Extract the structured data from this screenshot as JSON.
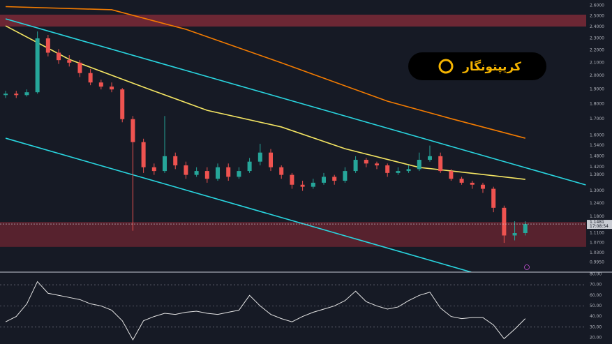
{
  "chart_data": [
    {
      "type": "candlestick",
      "log_scale": true,
      "xlim": [
        -0.53,
        54.74
      ],
      "ylim": [
        0.959,
        2.655
      ],
      "yticks": [
        {
          "value": 2.6,
          "label": "2.6000"
        },
        {
          "value": 2.5,
          "label": "2.5000"
        },
        {
          "value": 2.4,
          "label": "2.4000"
        },
        {
          "value": 2.3,
          "label": "2.3000"
        },
        {
          "value": 2.2,
          "label": "2.2000"
        },
        {
          "value": 2.1,
          "label": "2.1000"
        },
        {
          "value": 2.0,
          "label": "2.0000"
        },
        {
          "value": 1.9,
          "label": "1.9000"
        },
        {
          "value": 1.8,
          "label": "1.8000"
        },
        {
          "value": 1.7,
          "label": "1.7000"
        },
        {
          "value": 1.6,
          "label": "1.6000"
        },
        {
          "value": 1.54,
          "label": "1.5400"
        },
        {
          "value": 1.48,
          "label": "1.4800"
        },
        {
          "value": 1.42,
          "label": "1.4200"
        },
        {
          "value": 1.38,
          "label": "1.3800"
        },
        {
          "value": 1.3,
          "label": "1.3000"
        },
        {
          "value": 1.24,
          "label": "1.2400"
        },
        {
          "value": 1.18,
          "label": "1.1800"
        },
        {
          "value": 1.11,
          "label": "1.1100"
        },
        {
          "value": 1.07,
          "label": "1.0700"
        },
        {
          "value": 1.03,
          "label": "1.0300"
        },
        {
          "value": 0.995,
          "label": "0.9950"
        }
      ],
      "up_color": "#26a69a",
      "down_color": "#ef5350",
      "open": [
        1.86,
        1.87,
        1.86,
        1.88,
        2.3,
        2.18,
        2.12,
        2.1,
        2.02,
        1.95,
        1.92,
        1.9,
        1.7,
        1.56,
        1.42,
        1.4,
        1.48,
        1.43,
        1.38,
        1.4,
        1.36,
        1.42,
        1.37,
        1.4,
        1.45,
        1.5,
        1.42,
        1.38,
        1.33,
        1.32,
        1.34,
        1.37,
        1.35,
        1.4,
        1.46,
        1.44,
        1.43,
        1.39,
        1.4,
        1.41,
        1.46,
        1.48,
        1.4,
        1.36,
        1.34,
        1.33,
        1.31,
        1.22,
        1.1,
        1.11
      ],
      "high": [
        1.89,
        1.89,
        1.9,
        2.36,
        2.33,
        2.21,
        2.16,
        2.12,
        2.05,
        1.97,
        1.95,
        1.91,
        1.72,
        1.58,
        1.44,
        1.72,
        1.5,
        1.45,
        1.42,
        1.42,
        1.44,
        1.44,
        1.42,
        1.47,
        1.55,
        1.52,
        1.43,
        1.39,
        1.35,
        1.36,
        1.39,
        1.38,
        1.42,
        1.48,
        1.47,
        1.45,
        1.44,
        1.42,
        1.43,
        1.5,
        1.54,
        1.5,
        1.41,
        1.37,
        1.35,
        1.34,
        1.32,
        1.23,
        1.16,
        1.16
      ],
      "low": [
        1.84,
        1.84,
        1.85,
        1.87,
        2.15,
        2.09,
        2.07,
        1.99,
        1.93,
        1.9,
        1.88,
        1.68,
        1.12,
        1.39,
        1.38,
        1.39,
        1.41,
        1.36,
        1.37,
        1.34,
        1.35,
        1.35,
        1.36,
        1.39,
        1.43,
        1.4,
        1.36,
        1.31,
        1.3,
        1.31,
        1.33,
        1.33,
        1.34,
        1.39,
        1.42,
        1.41,
        1.37,
        1.38,
        1.39,
        1.4,
        1.45,
        1.39,
        1.35,
        1.33,
        1.31,
        1.29,
        1.2,
        1.07,
        1.08,
        1.1
      ],
      "close": [
        1.87,
        1.86,
        1.88,
        2.3,
        2.18,
        2.12,
        2.1,
        2.02,
        1.95,
        1.92,
        1.9,
        1.7,
        1.56,
        1.42,
        1.4,
        1.48,
        1.43,
        1.38,
        1.4,
        1.36,
        1.42,
        1.37,
        1.4,
        1.45,
        1.5,
        1.42,
        1.38,
        1.33,
        1.32,
        1.34,
        1.37,
        1.35,
        1.4,
        1.46,
        1.44,
        1.43,
        1.39,
        1.4,
        1.41,
        1.46,
        1.48,
        1.4,
        1.36,
        1.34,
        1.33,
        1.31,
        1.22,
        1.1,
        1.11,
        1.148
      ],
      "lines": [
        {
          "color": "#f57c00",
          "x": [
            0,
            10,
            17,
            26,
            36,
            42,
            49
          ],
          "values": [
            2.59,
            2.56,
            2.379,
            2.099,
            1.818,
            1.703,
            1.583
          ]
        },
        {
          "color": "#f5e663",
          "x": [
            0,
            6,
            13,
            19,
            26,
            32,
            39,
            45,
            49
          ],
          "values": [
            2.41,
            2.126,
            1.916,
            1.757,
            1.651,
            1.522,
            1.419,
            1.382,
            1.357
          ]
        },
        {
          "color": "#29d6e0",
          "x": [
            0,
            54.7
          ],
          "values": [
            2.474,
            1.329
          ]
        },
        {
          "color": "#29d6e0",
          "x": [
            0,
            43.9
          ],
          "values": [
            1.583,
            0.959
          ]
        }
      ],
      "zones": [
        {
          "from": 2.404,
          "to": 2.513,
          "color": "#8a2c3a"
        },
        {
          "from": 1.054,
          "to": 1.157,
          "color": "#6e2632"
        }
      ],
      "last_price": 1.1481,
      "countdown": "17:08:54",
      "watermark": "کریپتونگار"
    },
    {
      "type": "line",
      "xlim": [
        -0.53,
        54.74
      ],
      "ylim": [
        14,
        81.3
      ],
      "color": "#e6e6e6",
      "yticks": [
        {
          "value": 80,
          "label": "80.00"
        },
        {
          "value": 70,
          "label": "70.00"
        },
        {
          "value": 60,
          "label": "60.00"
        },
        {
          "value": 50,
          "label": "50.00"
        },
        {
          "value": 40,
          "label": "40.00"
        },
        {
          "value": 30,
          "label": "30.00"
        },
        {
          "value": 20,
          "label": "20.00"
        }
      ],
      "dashed_levels": [
        70,
        50,
        30
      ],
      "values": [
        35,
        40,
        52,
        73,
        62,
        60,
        58,
        56,
        52,
        50,
        46,
        36,
        18,
        36,
        40,
        43,
        42,
        44,
        45,
        43,
        42,
        44,
        46,
        60,
        50,
        42,
        38,
        35,
        40,
        44,
        47,
        50,
        55,
        64,
        54,
        50,
        47,
        49,
        55,
        60,
        63,
        48,
        40,
        38,
        39,
        39,
        32,
        19,
        28,
        38
      ]
    }
  ]
}
